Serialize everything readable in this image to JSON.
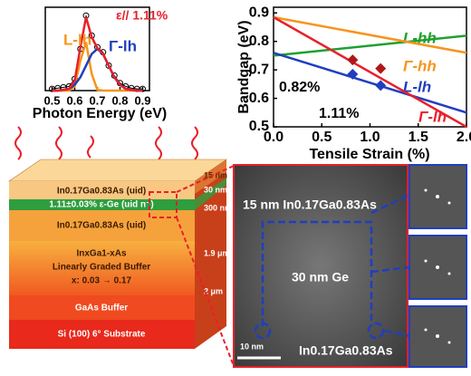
{
  "chart_data": [
    {
      "type": "line",
      "x_label": "Photon Energy (eV)",
      "x": [
        0.5,
        0.525,
        0.55,
        0.575,
        0.6,
        0.625,
        0.65,
        0.675,
        0.7,
        0.725,
        0.75,
        0.775,
        0.8,
        0.825,
        0.85,
        0.875,
        0.9
      ],
      "xlim": [
        0.47,
        0.93
      ],
      "ylim": [
        0,
        1
      ],
      "xticks": [
        0.5,
        0.6,
        0.7,
        0.8,
        0.9
      ],
      "series": [
        {
          "color": "#000000",
          "marker": "circle",
          "values": [
            0.02,
            0.03,
            0.04,
            0.05,
            0.14,
            0.5,
            0.9,
            0.66,
            0.52,
            0.46,
            0.3,
            0.18,
            0.09,
            0.05,
            0.03,
            0.02,
            0.02
          ]
        },
        {
          "color": "#f7941d",
          "values": [
            0,
            0,
            0,
            0,
            0.05,
            0.36,
            0.58,
            0.2,
            0.01,
            0,
            0,
            0,
            0,
            0,
            0,
            0,
            0
          ]
        },
        {
          "color": "#1f3fbf",
          "values": [
            0,
            0,
            0.01,
            0.02,
            0.07,
            0.16,
            0.3,
            0.44,
            0.5,
            0.44,
            0.3,
            0.16,
            0.07,
            0.02,
            0.01,
            0,
            0
          ]
        },
        {
          "color": "#e8202a",
          "values": [
            0,
            0,
            0.01,
            0.02,
            0.12,
            0.52,
            0.88,
            0.64,
            0.51,
            0.44,
            0.3,
            0.16,
            0.07,
            0.02,
            0.01,
            0,
            0
          ]
        }
      ],
      "annotations": [
        {
          "text": "ε// 1.11%",
          "color": "#e8202a"
        },
        {
          "text": "L-lh",
          "color": "#f7941d"
        },
        {
          "text": "Γ-lh",
          "color": "#1f3fbf"
        }
      ]
    },
    {
      "type": "line",
      "x_label": "Tensile Strain (%)",
      "y_label": "Bandgap (eV)",
      "xlim": [
        0,
        2
      ],
      "ylim": [
        0.5,
        0.92
      ],
      "xticks": [
        {
          "value": 0,
          "label": "0.0"
        },
        0.5,
        {
          "value": 1,
          "label": "1.0"
        },
        1.5,
        {
          "value": 2,
          "label": "2.0"
        }
      ],
      "yticks": [
        0.5,
        0.6,
        0.7,
        0.8,
        0.9
      ],
      "series": [
        {
          "name": "L-hh",
          "color": "#1fa02f",
          "x": [
            0,
            2
          ],
          "values": [
            0.75,
            0.82
          ]
        },
        {
          "name": "Γ-hh",
          "color": "#f7941d",
          "x": [
            0,
            2
          ],
          "values": [
            0.885,
            0.76
          ]
        },
        {
          "name": "L-lh",
          "color": "#1f3fbf",
          "x": [
            0,
            2
          ],
          "values": [
            0.76,
            0.55
          ]
        },
        {
          "name": "Γ-lh",
          "color": "#e8202a",
          "x": [
            0,
            2
          ],
          "values": [
            0.885,
            0.5
          ]
        },
        {
          "color": "#b01818",
          "marker": "diamond",
          "line": false,
          "x": [
            0.82,
            1.11
          ],
          "values": [
            0.735,
            0.705
          ]
        },
        {
          "color": "#1f3fbf",
          "marker": "diamond",
          "line": false,
          "x": [
            0.82,
            1.11
          ],
          "values": [
            0.685,
            0.645
          ]
        }
      ],
      "annotations": [
        {
          "text": "0.82%",
          "color": "#000000"
        },
        {
          "text": "1.11%",
          "color": "#000000"
        }
      ]
    }
  ],
  "stack": {
    "layers": [
      "In0.17Ga0.83As (uid)",
      "1.11±0.03% ε-Ge (uid n⁻)",
      "In0.17Ga0.83As (uid)",
      "InxGa1-xAs",
      "Linearly Graded Buffer",
      "x: 0.03 → 0.17",
      "GaAs Buffer",
      "Si (100) 6° Substrate"
    ],
    "thicknesses": [
      "15 nm",
      "30 nm",
      "300 nm",
      "1.9 μm",
      "2 μm"
    ]
  },
  "tem": {
    "top_label": "15 nm In0.17Ga0.83As",
    "middle_label": "30 nm Ge",
    "bottom_label": "In0.17Ga0.83As",
    "scale_bar": "10 nm"
  }
}
